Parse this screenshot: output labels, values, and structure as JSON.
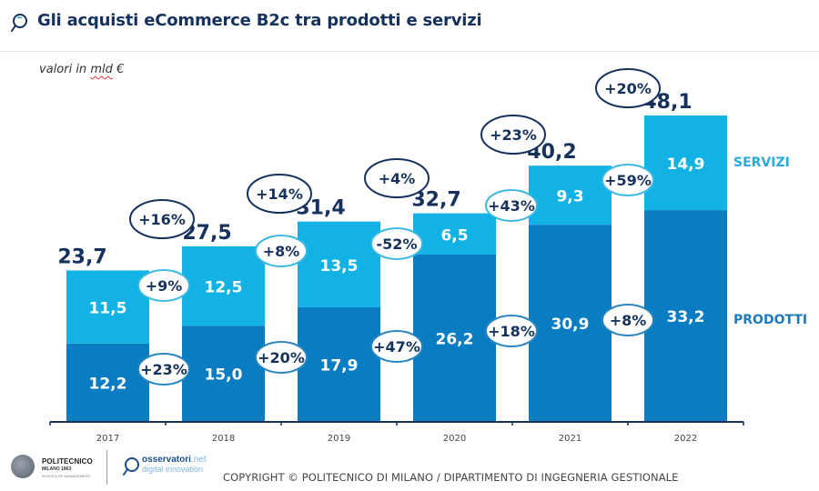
{
  "header": {
    "title": "Gli acquisti eCommerce B2c tra prodotti e servizi",
    "icon": "magnifier-speech-icon"
  },
  "unit_label_prefix": "valori in ",
  "unit_label_mld": "mld",
  "unit_label_suffix": " €",
  "footer": {
    "poli_name": "POLITECNICO",
    "poli_sub": "MILANO 1863",
    "poli_school": "SCHOOL OF MANAGEMENT",
    "oss_name": "osservatori",
    "oss_net": ".net",
    "oss_tag": "digital innovation",
    "copyright": "COPYRIGHT © POLITECNICO DI MILANO / DIPARTIMENTO DI INGEGNERIA GESTIONALE"
  },
  "colors": {
    "prodotti": "#0a7dc2",
    "servizi": "#12b2e4",
    "total_text": "#16325c",
    "servizi_label": "#2aaad8",
    "prodotti_label": "#1f7ab8",
    "total_oval_border": "#16325c",
    "servizi_oval_border": "#3db8e2",
    "prodotti_oval_border": "#2a85bf",
    "axis": "#16325c"
  },
  "chart_data": {
    "type": "bar",
    "stacked": true,
    "title": "Gli acquisti eCommerce B2c tra prodotti e servizi",
    "subtitle": "valori in mld €",
    "xlabel": "",
    "ylabel": "",
    "categories": [
      "2017",
      "2018",
      "2019",
      "2020",
      "2021",
      "2022"
    ],
    "series": [
      {
        "name": "PRODOTTI",
        "values": [
          12.2,
          15.0,
          17.9,
          26.2,
          30.9,
          33.2
        ],
        "labels": [
          "12,2",
          "15,0",
          "17,9",
          "26,2",
          "30,9",
          "33,2"
        ]
      },
      {
        "name": "SERVIZI",
        "values": [
          11.5,
          12.5,
          13.5,
          6.5,
          9.3,
          14.9
        ],
        "labels": [
          "11,5",
          "12,5",
          "13,5",
          "6,5",
          "9,3",
          "14,9"
        ]
      }
    ],
    "totals": [
      23.7,
      27.5,
      31.4,
      32.7,
      40.2,
      48.1
    ],
    "total_labels": [
      "23,7",
      "27,5",
      "31,4",
      "32,7",
      "40,2",
      "48,1"
    ],
    "growth_total": [
      "+16%",
      "+14%",
      "+4%",
      "+23%",
      "+20%"
    ],
    "growth_servizi": [
      "+9%",
      "+8%",
      "-52%",
      "+43%",
      "+59%"
    ],
    "growth_prodotti": [
      "+23%",
      "+20%",
      "+47%",
      "+18%",
      "+8%"
    ],
    "legend": [
      "SERVIZI",
      "PRODOTTI"
    ],
    "legend_placement": "right",
    "ylim": [
      0,
      48.1
    ],
    "grid": false
  }
}
